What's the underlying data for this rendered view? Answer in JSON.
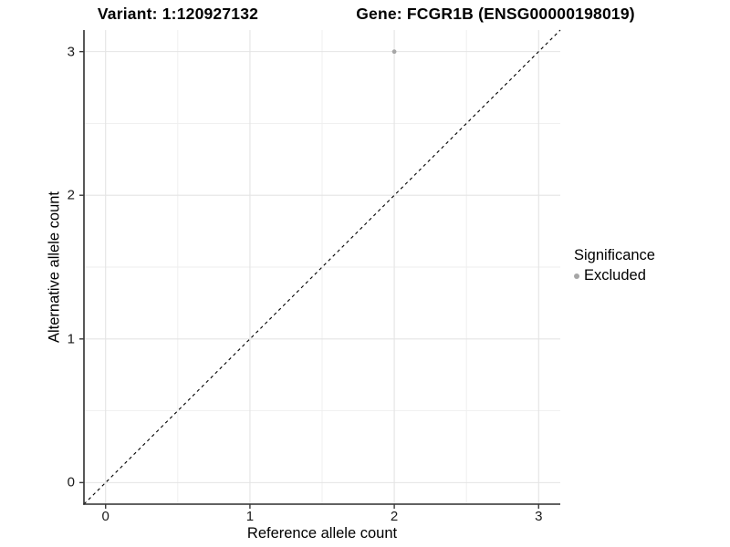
{
  "chart_data": {
    "type": "scatter",
    "title_variant": "Variant: 1:120927132",
    "title_gene": "Gene: FCGR1B (ENSG00000198019)",
    "xlabel": "Reference allele count",
    "ylabel": "Alternative allele count",
    "xlim": [
      -0.15,
      3.15
    ],
    "ylim": [
      -0.15,
      3.15
    ],
    "xticks": [
      0,
      1,
      2,
      3
    ],
    "yticks": [
      0,
      1,
      2,
      3
    ],
    "minor_ticks": [
      0.5,
      1.5,
      2.5
    ],
    "grid": true,
    "points": [
      {
        "x": 2,
        "y": 3,
        "series": "Excluded"
      }
    ],
    "reference_line": {
      "slope": 1,
      "intercept": 0,
      "style": "dashed"
    },
    "legend": {
      "title": "Significance",
      "position": "right",
      "items": [
        {
          "label": "Excluded",
          "color": "#a6a6a6"
        }
      ]
    },
    "colors": {
      "point": "#a6a6a6",
      "grid_major": "#e4e4e4",
      "grid_minor": "#eeeeee",
      "axis_line": "#2e2e2e",
      "tick_mark": "#3a3a3a",
      "dashed_line": "#000000",
      "background": "#ffffff"
    }
  }
}
